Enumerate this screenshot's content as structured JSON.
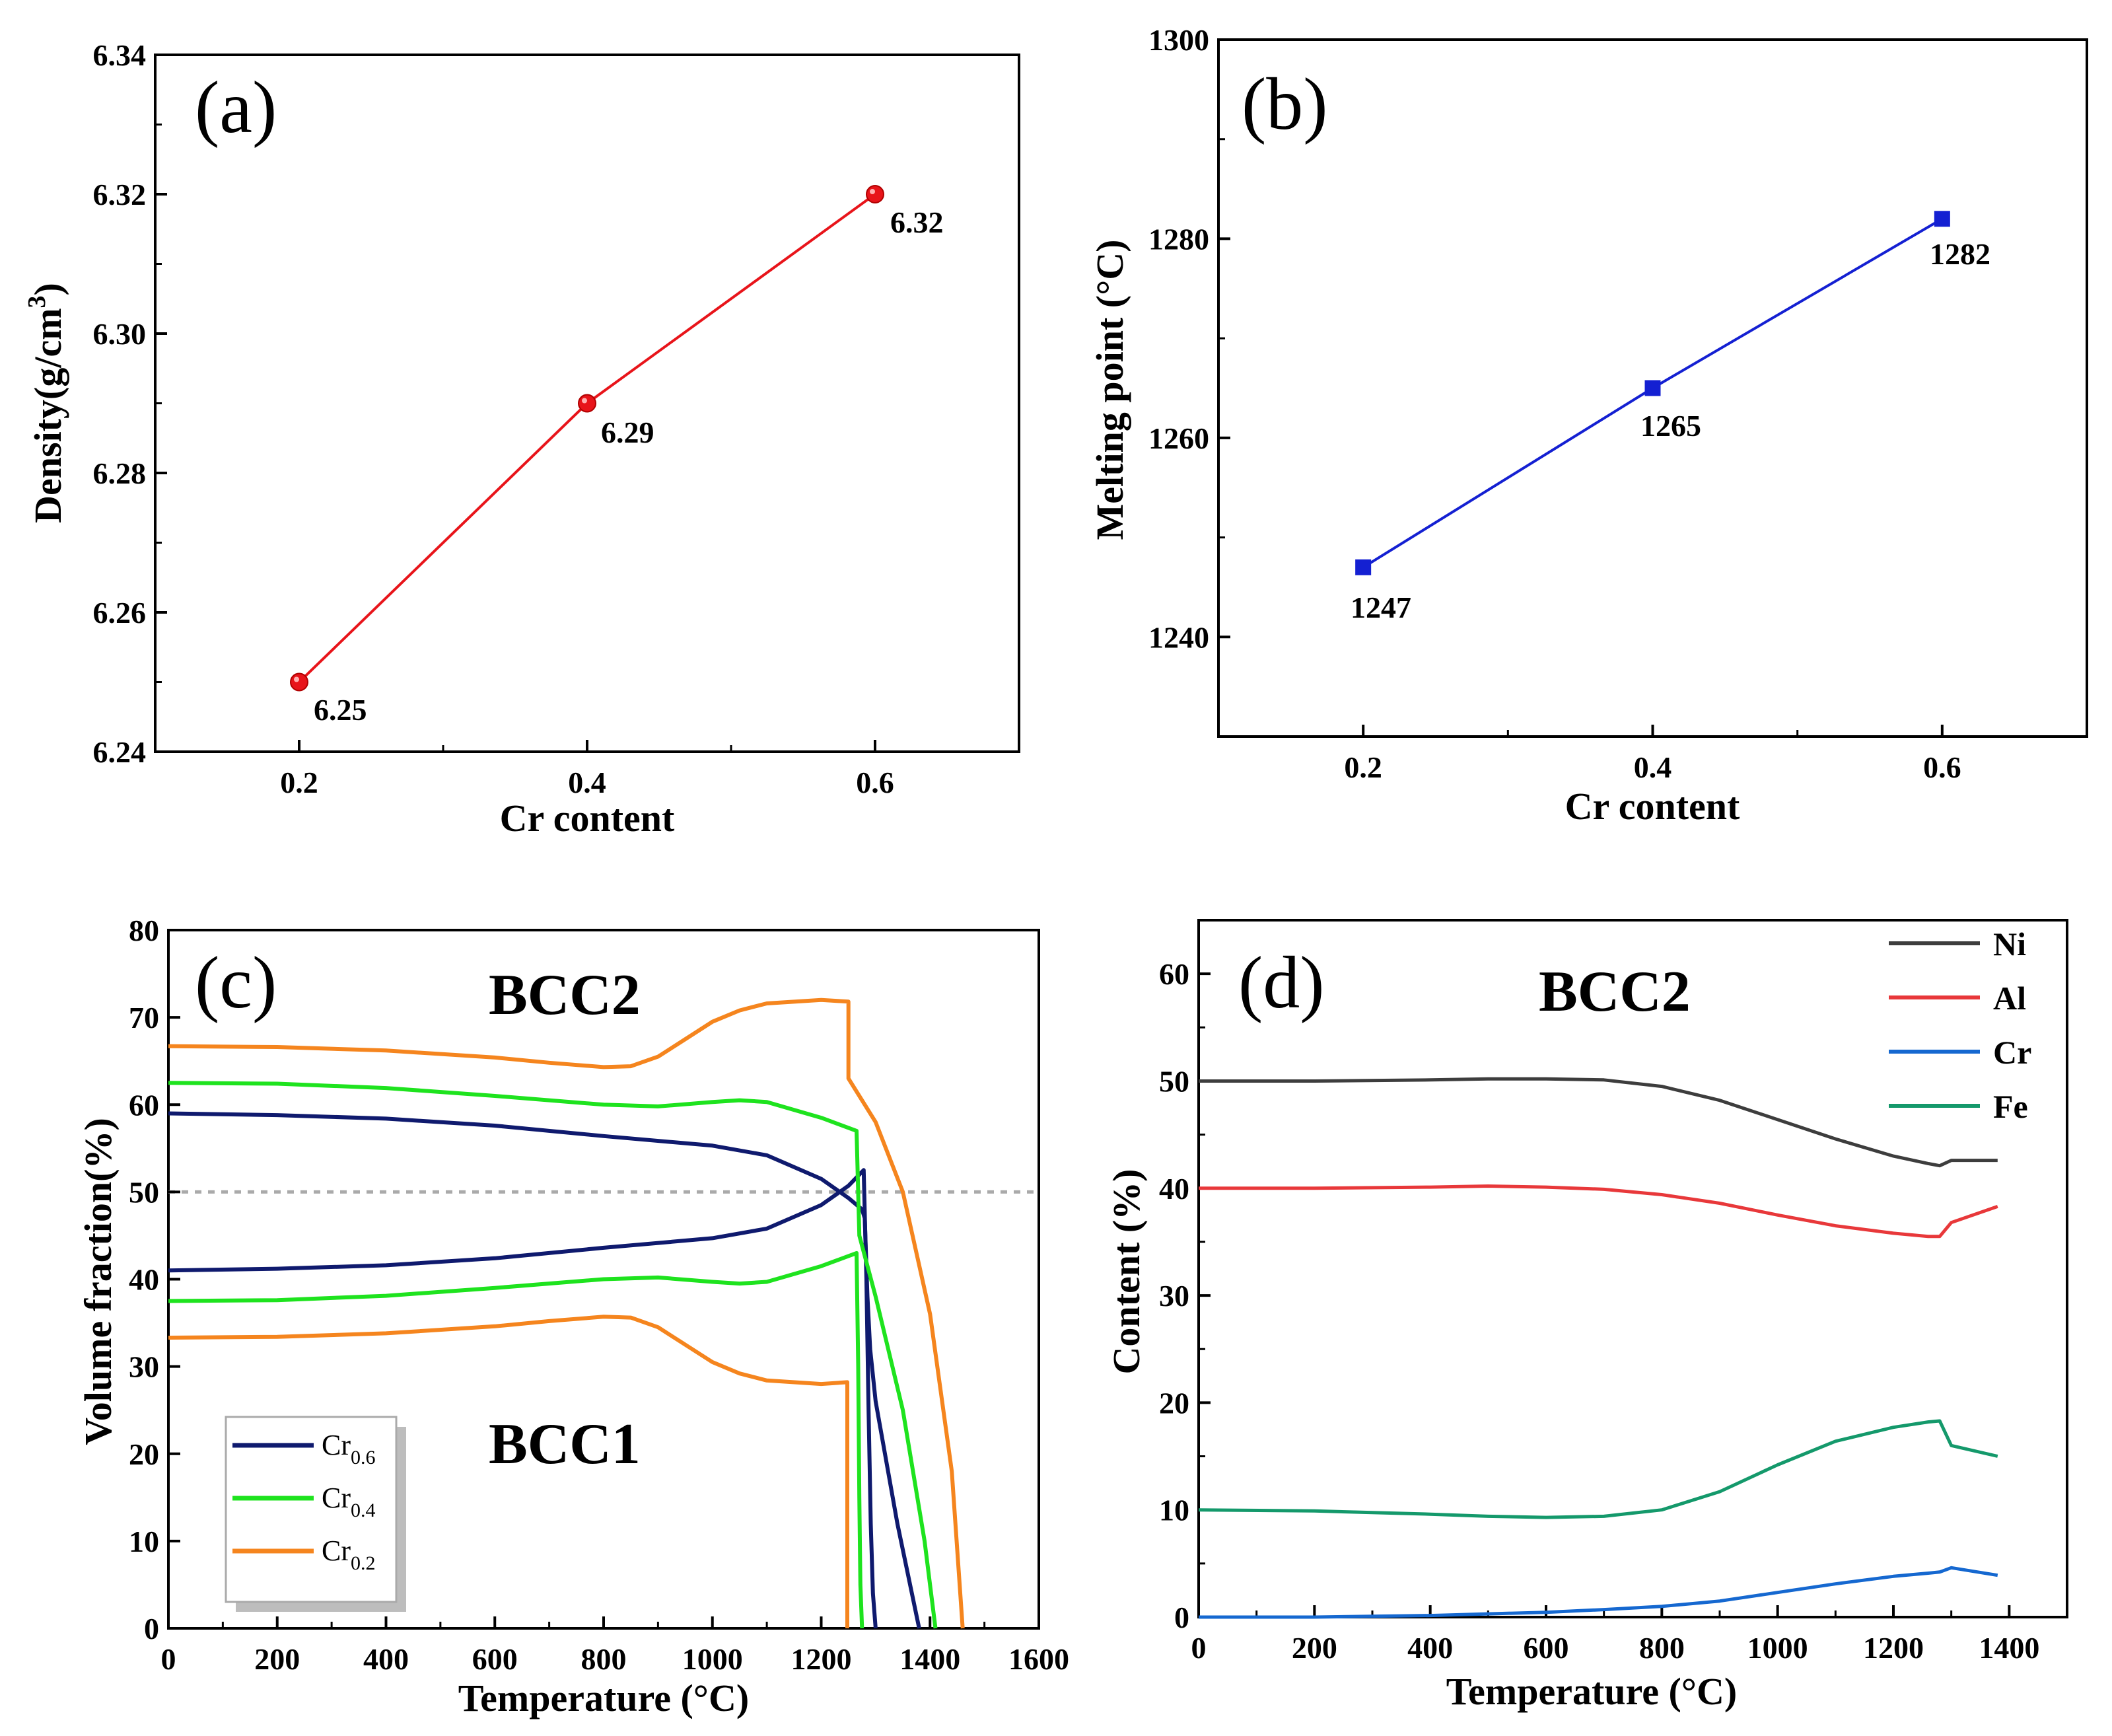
{
  "chart_data": [
    {
      "panel": "(a)",
      "type": "line",
      "xlabel": "Cr content",
      "ylabel": "Density(g/cm",
      "ylabel_sup": "3",
      "ylabel_close": ")",
      "xlim": [
        0.1,
        0.7
      ],
      "ylim": [
        6.24,
        6.34
      ],
      "xticks": [
        "0.2",
        "0.4",
        "0.6"
      ],
      "yticks": [
        "6.24",
        "6.26",
        "6.28",
        "6.30",
        "6.32",
        "6.34"
      ],
      "x": [
        0.2,
        0.4,
        0.6
      ],
      "y": [
        6.25,
        6.29,
        6.32
      ],
      "point_labels": [
        "6.25",
        "6.29",
        "6.32"
      ],
      "color": "#e8141a",
      "marker": "circle"
    },
    {
      "panel": "(b)",
      "type": "line",
      "xlabel": "Cr content",
      "ylabel": "Melting point (°C)",
      "xlim": [
        0.1,
        0.7
      ],
      "ylim": [
        1230,
        1300
      ],
      "xticks": [
        "0.2",
        "0.4",
        "0.6"
      ],
      "yticks": [
        "1240",
        "1260",
        "1280",
        "1300"
      ],
      "x": [
        0.2,
        0.4,
        0.6
      ],
      "y": [
        1247,
        1265,
        1282
      ],
      "point_labels": [
        "1247",
        "1265",
        "1282"
      ],
      "color": "#1420d2",
      "marker": "square"
    },
    {
      "panel": "(c)",
      "type": "line",
      "xlabel": "Temperature (°C)",
      "ylabel": "Volume fraction(%)",
      "xlim": [
        0,
        1600
      ],
      "ylim": [
        0,
        80
      ],
      "xticks": [
        "0",
        "200",
        "400",
        "600",
        "800",
        "1000",
        "1200",
        "1400",
        "1600"
      ],
      "yticks": [
        "0",
        "10",
        "20",
        "30",
        "40",
        "50",
        "60",
        "70",
        "80"
      ],
      "reference_line": 50,
      "region_labels": [
        "BCC2",
        "BCC1"
      ],
      "legend": [
        {
          "base": "Cr",
          "sub": "0.6",
          "color": "#0f1a6e"
        },
        {
          "base": "Cr",
          "sub": "0.4",
          "color": "#1ee31e"
        },
        {
          "base": "Cr",
          "sub": "0.2",
          "color": "#f5851e"
        }
      ],
      "series": [
        {
          "name": "Cr0.6 BCC2",
          "color": "#0f1a6e",
          "x": [
            0,
            200,
            400,
            600,
            800,
            1000,
            1100,
            1200,
            1250,
            1275,
            1280,
            1285,
            1290,
            1300,
            1340,
            1380
          ],
          "y": [
            59,
            58.8,
            58.4,
            57.6,
            56.4,
            55.3,
            54.2,
            51.5,
            49.3,
            48,
            47,
            38,
            32,
            26,
            12,
            0
          ]
        },
        {
          "name": "Cr0.6 BCC1",
          "color": "#0f1a6e",
          "x": [
            0,
            200,
            400,
            600,
            800,
            1000,
            1100,
            1200,
            1250,
            1278,
            1283,
            1287,
            1291,
            1295,
            1300
          ],
          "y": [
            41,
            41.2,
            41.6,
            42.4,
            43.6,
            44.7,
            45.8,
            48.5,
            50.7,
            52.5,
            40,
            25,
            12,
            4,
            0
          ]
        },
        {
          "name": "Cr0.4 BCC2",
          "color": "#1ee31e",
          "x": [
            0,
            200,
            400,
            600,
            800,
            900,
            1000,
            1050,
            1100,
            1200,
            1265,
            1270,
            1300,
            1350,
            1390,
            1410
          ],
          "y": [
            62.5,
            62.4,
            61.9,
            61,
            60,
            59.8,
            60.3,
            60.5,
            60.3,
            58.5,
            57,
            45,
            38,
            25,
            10,
            0
          ]
        },
        {
          "name": "Cr0.4 BCC1",
          "color": "#1ee31e",
          "x": [
            0,
            200,
            400,
            600,
            800,
            900,
            1000,
            1050,
            1100,
            1200,
            1265,
            1268,
            1270,
            1272,
            1275
          ],
          "y": [
            37.5,
            37.6,
            38.1,
            39,
            40,
            40.2,
            39.7,
            39.5,
            39.7,
            41.5,
            43,
            30,
            15,
            5,
            0
          ]
        },
        {
          "name": "Cr0.2 BCC2",
          "color": "#f5851e",
          "x": [
            0,
            200,
            400,
            600,
            700,
            800,
            850,
            900,
            950,
            1000,
            1050,
            1100,
            1200,
            1250,
            1250,
            1300,
            1350,
            1400,
            1440,
            1460
          ],
          "y": [
            66.7,
            66.6,
            66.2,
            65.4,
            64.8,
            64.3,
            64.4,
            65.5,
            67.5,
            69.5,
            70.8,
            71.6,
            72,
            71.8,
            63,
            58,
            50,
            36,
            18,
            0
          ]
        },
        {
          "name": "Cr0.2 BCC1",
          "color": "#f5851e",
          "x": [
            0,
            200,
            400,
            600,
            700,
            800,
            850,
            900,
            950,
            1000,
            1050,
            1100,
            1200,
            1248,
            1248
          ],
          "y": [
            33.3,
            33.4,
            33.8,
            34.6,
            35.2,
            35.7,
            35.6,
            34.5,
            32.5,
            30.5,
            29.2,
            28.4,
            28,
            28.2,
            0
          ]
        }
      ]
    },
    {
      "panel": "(d)",
      "type": "line",
      "xlabel": "Temperature (°C)",
      "ylabel": "Content (%)",
      "xlim": [
        0,
        1500
      ],
      "ylim": [
        0,
        65
      ],
      "xticks": [
        "0",
        "200",
        "400",
        "600",
        "800",
        "1000",
        "1200",
        "1400"
      ],
      "yticks": [
        "0",
        "10",
        "20",
        "30",
        "40",
        "50",
        "60"
      ],
      "region_label": "BCC2",
      "legend": [
        {
          "name": "Ni",
          "color": "#3d3d3d"
        },
        {
          "name": "Al",
          "color": "#e8383a"
        },
        {
          "name": "Cr",
          "color": "#1568d0"
        },
        {
          "name": "Fe",
          "color": "#14996b"
        }
      ],
      "series": [
        {
          "name": "Ni",
          "color": "#3d3d3d",
          "x": [
            0,
            200,
            400,
            500,
            600,
            700,
            800,
            900,
            1000,
            1100,
            1200,
            1260,
            1280,
            1300,
            1380
          ],
          "y": [
            50,
            50,
            50.1,
            50.2,
            50.2,
            50.1,
            49.5,
            48.2,
            46.4,
            44.6,
            43,
            42.3,
            42.1,
            42.6,
            42.6
          ]
        },
        {
          "name": "Al",
          "color": "#e8383a",
          "x": [
            0,
            200,
            400,
            500,
            600,
            700,
            800,
            900,
            1000,
            1100,
            1200,
            1260,
            1280,
            1300,
            1380
          ],
          "y": [
            40,
            40,
            40.1,
            40.2,
            40.1,
            39.9,
            39.4,
            38.6,
            37.5,
            36.5,
            35.8,
            35.5,
            35.5,
            36.8,
            38.3
          ]
        },
        {
          "name": "Cr",
          "color": "#1568d0",
          "x": [
            0,
            200,
            400,
            500,
            600,
            700,
            800,
            900,
            1000,
            1100,
            1200,
            1260,
            1280,
            1300,
            1380
          ],
          "y": [
            0,
            0,
            0.15,
            0.3,
            0.45,
            0.7,
            1,
            1.5,
            2.3,
            3.1,
            3.8,
            4.1,
            4.2,
            4.6,
            3.9
          ]
        },
        {
          "name": "Fe",
          "color": "#14996b",
          "x": [
            0,
            200,
            400,
            500,
            600,
            700,
            800,
            900,
            1000,
            1100,
            1200,
            1260,
            1280,
            1300,
            1380
          ],
          "y": [
            10,
            9.9,
            9.6,
            9.4,
            9.3,
            9.4,
            10,
            11.7,
            14.2,
            16.4,
            17.7,
            18.2,
            18.3,
            16,
            15
          ]
        }
      ]
    }
  ]
}
